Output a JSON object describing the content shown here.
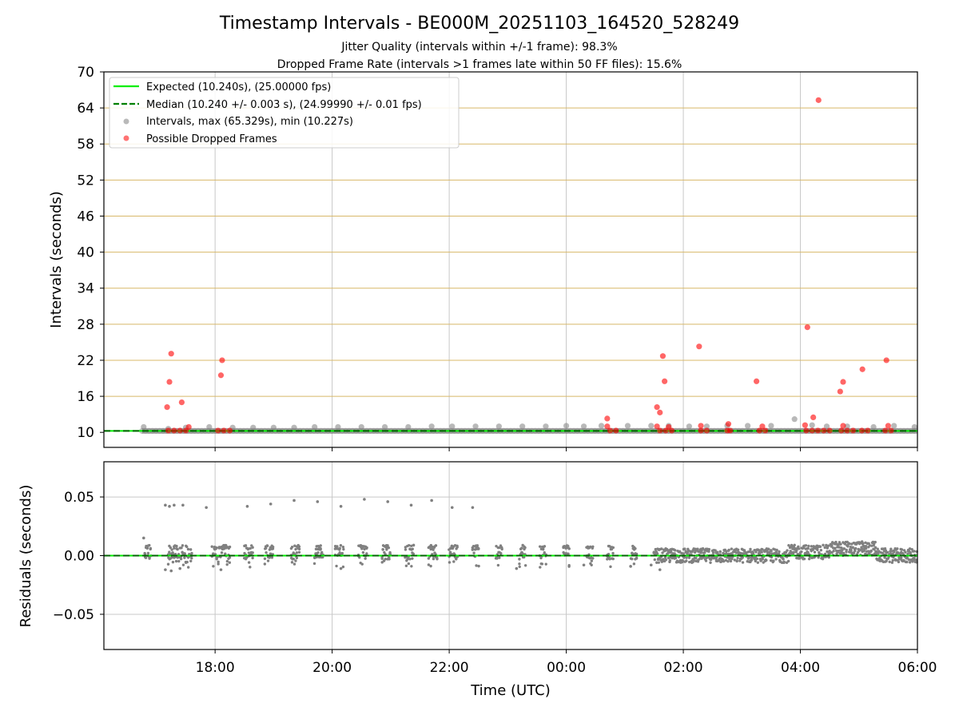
{
  "chart_data": [
    {
      "id": "intervals",
      "type": "scatter",
      "title": "Timestamp Intervals - BE000M_20251103_164520_528249",
      "subtitle_lines": [
        "Jitter Quality (intervals within +/-1 frame): 98.3%",
        "Dropped Frame Rate (intervals >1 frames late within 50 FF files): 15.6%"
      ],
      "ylabel": "Intervals (seconds)",
      "ylim": [
        7.5,
        70
      ],
      "yticks": [
        10,
        16,
        22,
        28,
        34,
        40,
        46,
        52,
        58,
        64,
        70
      ],
      "xlim_hours": [
        16.1,
        30.0
      ],
      "xticks_hours": [
        18,
        20,
        22,
        24,
        26,
        28,
        30
      ],
      "expected_interval": 10.24,
      "median_interval": 10.24,
      "legend": [
        "Expected (10.240s), (25.00000 fps)",
        "Median (10.240 +/- 0.003 s), (24.99990 +/- 0.01 fps)",
        "Intervals, max (65.329s), min (10.227s)",
        "Possible Dropped Frames"
      ],
      "series": [
        {
          "name": "Intervals",
          "color": "#808080",
          "points": [
            [
              16.78,
              10.9
            ],
            [
              17.2,
              10.6
            ],
            [
              17.5,
              10.8
            ],
            [
              17.9,
              10.9
            ],
            [
              18.3,
              10.8
            ],
            [
              18.65,
              10.8
            ],
            [
              19.0,
              10.8
            ],
            [
              19.35,
              10.8
            ],
            [
              19.7,
              10.9
            ],
            [
              20.1,
              10.9
            ],
            [
              20.5,
              10.9
            ],
            [
              20.9,
              10.9
            ],
            [
              21.3,
              10.9
            ],
            [
              21.7,
              11.0
            ],
            [
              22.05,
              11.0
            ],
            [
              22.45,
              11.0
            ],
            [
              22.85,
              11.0
            ],
            [
              23.25,
              11.0
            ],
            [
              23.65,
              11.0
            ],
            [
              24.0,
              11.1
            ],
            [
              24.3,
              11.0
            ],
            [
              24.6,
              11.1
            ],
            [
              25.05,
              11.1
            ],
            [
              25.45,
              11.1
            ],
            [
              25.75,
              11.1
            ],
            [
              26.1,
              11.0
            ],
            [
              26.4,
              11.0
            ],
            [
              26.75,
              11.1
            ],
            [
              27.1,
              11.1
            ],
            [
              27.5,
              11.1
            ],
            [
              27.9,
              12.2
            ],
            [
              28.2,
              11.2
            ],
            [
              28.45,
              11.0
            ],
            [
              28.8,
              11.0
            ],
            [
              29.25,
              10.9
            ],
            [
              29.6,
              11.1
            ],
            [
              29.95,
              10.9
            ]
          ],
          "baseline_from_to_hours": [
            16.1,
            30.0
          ]
        },
        {
          "name": "Possible Dropped Frames",
          "color": "#ff0000",
          "points": [
            [
              17.18,
              14.2
            ],
            [
              17.22,
              18.4
            ],
            [
              17.25,
              23.1
            ],
            [
              17.43,
              15.0
            ],
            [
              17.55,
              10.9
            ],
            [
              18.1,
              19.5
            ],
            [
              18.12,
              22.0
            ],
            [
              17.2,
              10.3
            ],
            [
              17.3,
              10.3
            ],
            [
              17.4,
              10.3
            ],
            [
              17.5,
              10.3
            ],
            [
              18.05,
              10.3
            ],
            [
              18.15,
              10.3
            ],
            [
              18.25,
              10.3
            ],
            [
              24.7,
              12.3
            ],
            [
              24.7,
              11.0
            ],
            [
              24.75,
              10.3
            ],
            [
              24.85,
              10.3
            ],
            [
              25.55,
              14.2
            ],
            [
              25.6,
              13.3
            ],
            [
              25.55,
              11.0
            ],
            [
              25.65,
              22.7
            ],
            [
              25.68,
              18.5
            ],
            [
              25.75,
              10.9
            ],
            [
              25.6,
              10.3
            ],
            [
              25.7,
              10.3
            ],
            [
              25.8,
              10.3
            ],
            [
              26.27,
              24.3
            ],
            [
              26.3,
              11.1
            ],
            [
              26.3,
              10.3
            ],
            [
              26.4,
              10.3
            ],
            [
              26.77,
              11.4
            ],
            [
              26.75,
              10.3
            ],
            [
              26.8,
              10.3
            ],
            [
              27.25,
              18.5
            ],
            [
              27.35,
              11.0
            ],
            [
              27.3,
              10.3
            ],
            [
              27.4,
              10.3
            ],
            [
              28.12,
              27.5
            ],
            [
              28.08,
              11.2
            ],
            [
              28.22,
              12.5
            ],
            [
              28.31,
              65.3
            ],
            [
              28.1,
              10.3
            ],
            [
              28.2,
              10.3
            ],
            [
              28.3,
              10.3
            ],
            [
              28.4,
              10.3
            ],
            [
              28.5,
              10.3
            ],
            [
              28.68,
              16.8
            ],
            [
              28.73,
              18.4
            ],
            [
              28.73,
              11.1
            ],
            [
              28.7,
              10.3
            ],
            [
              28.8,
              10.3
            ],
            [
              28.9,
              10.3
            ],
            [
              29.06,
              20.5
            ],
            [
              29.05,
              10.3
            ],
            [
              29.15,
              10.3
            ],
            [
              29.47,
              22.0
            ],
            [
              29.5,
              11.1
            ],
            [
              29.45,
              10.3
            ],
            [
              29.55,
              10.3
            ]
          ]
        }
      ]
    },
    {
      "id": "residuals",
      "type": "scatter",
      "ylabel": "Residuals (seconds)",
      "xlabel": "Time (UTC)",
      "ylim": [
        -0.08,
        0.08
      ],
      "yticks": [
        -0.05,
        0.0,
        0.05
      ],
      "ytick_labels": [
        "−0.05",
        "0.00",
        "0.05"
      ],
      "xlim_hours": [
        16.1,
        30.0
      ],
      "xticks_hours": [
        18,
        20,
        22,
        24,
        26,
        28,
        30
      ],
      "xtick_labels": [
        "18:00",
        "20:00",
        "22:00",
        "00:00",
        "02:00",
        "04:00",
        "06:00"
      ],
      "outliers": [
        [
          16.78,
          0.015
        ],
        [
          17.15,
          0.043
        ],
        [
          17.22,
          0.042
        ],
        [
          17.3,
          0.043
        ],
        [
          17.45,
          0.043
        ],
        [
          17.85,
          0.041
        ],
        [
          18.55,
          0.042
        ],
        [
          18.95,
          0.044
        ],
        [
          19.35,
          0.047
        ],
        [
          19.75,
          0.046
        ],
        [
          20.15,
          0.042
        ],
        [
          20.55,
          0.048
        ],
        [
          20.95,
          0.046
        ],
        [
          21.35,
          0.043
        ],
        [
          21.7,
          0.047
        ],
        [
          22.05,
          0.041
        ],
        [
          22.4,
          0.041
        ],
        [
          17.15,
          -0.012
        ],
        [
          17.25,
          -0.013
        ],
        [
          17.4,
          -0.011
        ],
        [
          18.1,
          -0.012
        ],
        [
          20.15,
          -0.011
        ],
        [
          23.15,
          -0.011
        ],
        [
          24.3,
          -0.008
        ],
        [
          25.45,
          -0.008
        ],
        [
          25.6,
          -0.012
        ],
        [
          29.9,
          -0.004
        ]
      ],
      "dense_clusters": [
        [
          16.8,
          16.9
        ],
        [
          17.2,
          17.6
        ],
        [
          17.95,
          18.25
        ],
        [
          18.5,
          18.65
        ],
        [
          18.85,
          19.0
        ],
        [
          19.3,
          19.45
        ],
        [
          19.7,
          19.85
        ],
        [
          20.05,
          20.2
        ],
        [
          20.45,
          20.6
        ],
        [
          20.85,
          21.0
        ],
        [
          21.25,
          21.4
        ],
        [
          21.65,
          21.8
        ],
        [
          22.0,
          22.15
        ],
        [
          22.4,
          22.5
        ],
        [
          22.8,
          22.9
        ],
        [
          23.2,
          23.3
        ],
        [
          23.55,
          23.65
        ],
        [
          23.95,
          24.05
        ],
        [
          24.35,
          24.45
        ],
        [
          24.7,
          24.8
        ],
        [
          25.1,
          25.2
        ],
        [
          25.5,
          30.0
        ]
      ]
    }
  ]
}
